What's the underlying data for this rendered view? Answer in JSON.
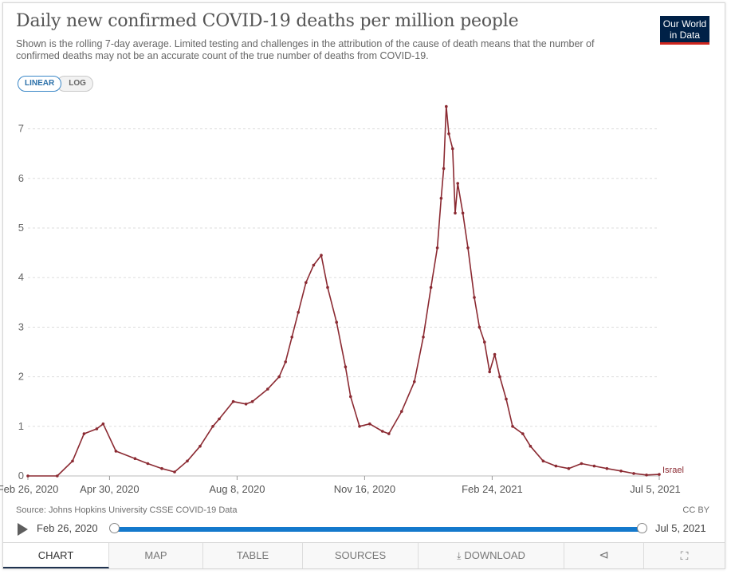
{
  "header": {
    "title": "Daily new confirmed COVID-19 deaths per million people",
    "subtitle": "Shown is the rolling 7-day average. Limited testing and challenges in the attribution of the cause of death means that the number of confirmed deaths may not be an accurate count of the true number of deaths from COVID-19."
  },
  "logo": {
    "line1": "Our World",
    "line2": "in Data",
    "bg": "#002147",
    "accent": "#ce261e"
  },
  "scale_toggle": {
    "linear": "LINEAR",
    "log": "LOG",
    "selected": "LINEAR"
  },
  "chart_data": {
    "type": "line",
    "title": "Daily new confirmed COVID-19 deaths per million people",
    "x_tick_labels": [
      "Feb 26, 2020",
      "Apr 30, 2020",
      "Aug 8, 2020",
      "Nov 16, 2020",
      "Feb 24, 2021",
      "Jul 5, 2021"
    ],
    "y_ticks": [
      0,
      1,
      2,
      3,
      4,
      5,
      6,
      7
    ],
    "ylim": [
      0,
      7.5
    ],
    "grid": "horizontal dashed",
    "series": [
      {
        "name": "Israel",
        "color": "#8b2a32",
        "x_dates": [
          "2020-02-26",
          "2020-03-20",
          "2020-04-01",
          "2020-04-10",
          "2020-04-20",
          "2020-04-25",
          "2020-05-05",
          "2020-05-20",
          "2020-05-30",
          "2020-06-10",
          "2020-06-20",
          "2020-06-30",
          "2020-07-10",
          "2020-07-20",
          "2020-07-25",
          "2020-08-05",
          "2020-08-15",
          "2020-08-20",
          "2020-09-01",
          "2020-09-10",
          "2020-09-15",
          "2020-09-20",
          "2020-09-25",
          "2020-10-01",
          "2020-10-07",
          "2020-10-13",
          "2020-10-18",
          "2020-10-25",
          "2020-11-01",
          "2020-11-05",
          "2020-11-12",
          "2020-11-20",
          "2020-11-30",
          "2020-12-05",
          "2020-12-15",
          "2020-12-25",
          "2021-01-01",
          "2021-01-07",
          "2021-01-12",
          "2021-01-15",
          "2021-01-17",
          "2021-01-19",
          "2021-01-21",
          "2021-01-24",
          "2021-01-26",
          "2021-01-28",
          "2021-02-01",
          "2021-02-05",
          "2021-02-10",
          "2021-02-14",
          "2021-02-18",
          "2021-02-22",
          "2021-02-26",
          "2021-03-02",
          "2021-03-07",
          "2021-03-12",
          "2021-03-20",
          "2021-03-26",
          "2021-04-05",
          "2021-04-15",
          "2021-04-25",
          "2021-05-05",
          "2021-05-15",
          "2021-05-25",
          "2021-06-05",
          "2021-06-15",
          "2021-06-25",
          "2021-07-05"
        ],
        "values": [
          0.0,
          0.0,
          0.3,
          0.85,
          0.95,
          1.05,
          0.5,
          0.35,
          0.25,
          0.15,
          0.08,
          0.3,
          0.6,
          1.0,
          1.15,
          1.5,
          1.45,
          1.5,
          1.75,
          2.0,
          2.3,
          2.8,
          3.3,
          3.9,
          4.25,
          4.45,
          3.8,
          3.1,
          2.2,
          1.6,
          1.0,
          1.05,
          0.9,
          0.85,
          1.3,
          1.9,
          2.8,
          3.8,
          4.6,
          5.6,
          6.2,
          7.45,
          6.9,
          6.6,
          5.3,
          5.9,
          5.3,
          4.6,
          3.6,
          3.0,
          2.7,
          2.1,
          2.45,
          2.0,
          1.55,
          1.0,
          0.85,
          0.6,
          0.3,
          0.2,
          0.15,
          0.25,
          0.2,
          0.15,
          0.1,
          0.05,
          0.02,
          0.03
        ]
      }
    ],
    "series_label": "Israel"
  },
  "footer": {
    "source": "Source: Johns Hopkins University CSSE COVID-19 Data",
    "license": "CC BY"
  },
  "timeline": {
    "start": "Feb 26, 2020",
    "end": "Jul 5, 2021"
  },
  "tabs": {
    "chart": "CHART",
    "map": "MAP",
    "table": "TABLE",
    "sources": "SOURCES",
    "download": "DOWNLOAD",
    "share_icon": "share-icon",
    "fullscreen_icon": "fullscreen-icon"
  }
}
